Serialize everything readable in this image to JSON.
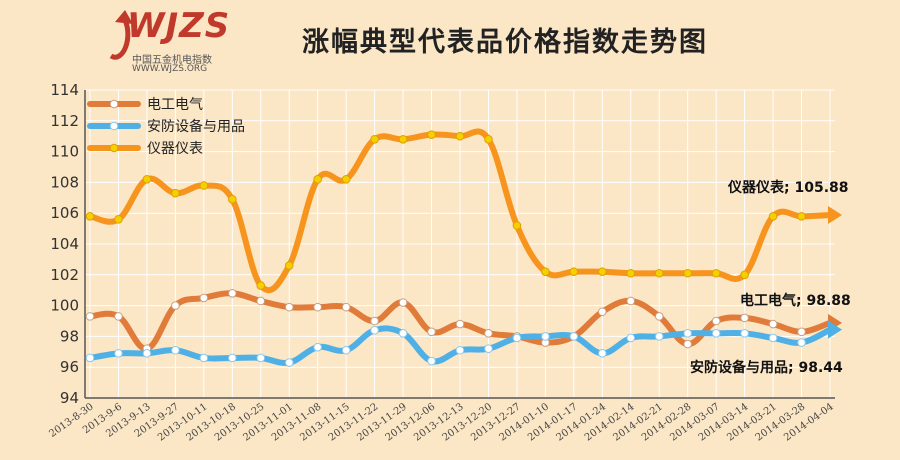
{
  "title": "涨幅典型代表品价格指数走势图",
  "logo": {
    "mark": "WJZS",
    "name_cn": "中国五金机电指数",
    "url": "WWW.WJZS.ORG"
  },
  "colors": {
    "electrical": "#e07b39",
    "security": "#4fb0e6",
    "instrument": "#f7941d",
    "marker_orange": "#f5d000",
    "grid": "#ffffff",
    "background": "#fbe6c6"
  },
  "chart_data": {
    "type": "line",
    "title": "涨幅典型代表品价格指数走势图",
    "ylim": [
      94,
      114
    ],
    "yticks": [
      94,
      96,
      98,
      100,
      102,
      104,
      106,
      108,
      110,
      112,
      114
    ],
    "grid": true,
    "legend": "top-left",
    "x": [
      "2013-8-30",
      "2013-9-6",
      "2013-9-13",
      "2013-9-27",
      "2013-10-11",
      "2013-10-18",
      "2013-10-25",
      "2013-11-01",
      "2013-11-08",
      "2013-11-15",
      "2013-11-22",
      "2013-11-29",
      "2013-12-06",
      "2013-12-13",
      "2013-12-20",
      "2013-12-27",
      "2014-01-10",
      "2014-01-17",
      "2014-01-24",
      "2014-02-14",
      "2014-02-21",
      "2014-02-28",
      "2014-03-07",
      "2014-03-14",
      "2014-03-21",
      "2014-03-28",
      "2014-04-04"
    ],
    "series": [
      {
        "name": "电工电气",
        "values": [
          99.3,
          99.3,
          97.2,
          100.0,
          100.5,
          100.8,
          100.3,
          99.9,
          99.9,
          99.9,
          99.0,
          100.2,
          98.3,
          98.8,
          98.2,
          98.0,
          97.6,
          98.0,
          99.6,
          100.3,
          99.3,
          97.5,
          99.0,
          99.2,
          98.8,
          98.3,
          98.88
        ],
        "end_label": "电工电气; 98.88"
      },
      {
        "name": "安防设备与用品",
        "values": [
          96.6,
          96.9,
          96.9,
          97.1,
          96.6,
          96.6,
          96.6,
          96.3,
          97.3,
          97.1,
          98.4,
          98.2,
          96.4,
          97.1,
          97.2,
          97.9,
          98.0,
          98.0,
          96.9,
          97.9,
          98.0,
          98.2,
          98.2,
          98.2,
          97.9,
          97.6,
          98.44
        ],
        "end_label": "安防设备与用品; 98.44"
      },
      {
        "name": "仪器仪表",
        "values": [
          105.8,
          105.6,
          108.2,
          107.3,
          107.8,
          106.9,
          101.3,
          102.6,
          108.2,
          108.2,
          110.8,
          110.8,
          111.1,
          111.0,
          110.8,
          105.2,
          102.2,
          102.2,
          102.2,
          102.1,
          102.1,
          102.1,
          102.1,
          102.0,
          105.8,
          105.8,
          105.88
        ],
        "end_label": "仪器仪表; 105.88"
      }
    ]
  }
}
